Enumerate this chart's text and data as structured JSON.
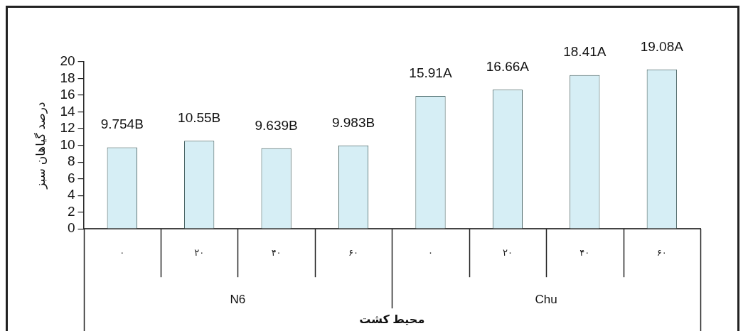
{
  "chart_data": {
    "type": "bar",
    "xlabel": "محیط کشت",
    "ylabel": "درصد گیاهان سبز",
    "categories": [
      "۰",
      "۲۰",
      "۴۰",
      "۶۰",
      "۰",
      "۲۰",
      "۴۰",
      "۶۰"
    ],
    "values": [
      9.754,
      10.55,
      9.639,
      9.983,
      15.91,
      16.66,
      18.41,
      19.08
    ],
    "value_labels": [
      "9.754B",
      "10.55B",
      "9.639B",
      "9.983B",
      "15.91A",
      "16.66A",
      "18.41A",
      "19.08A"
    ],
    "color": "#d6eef5",
    "ylim": [
      0,
      20
    ],
    "yticks": [
      0,
      2,
      4,
      6,
      8,
      10,
      12,
      14,
      16,
      18,
      20
    ],
    "annotations": [
      "N6",
      "Chu"
    ]
  }
}
